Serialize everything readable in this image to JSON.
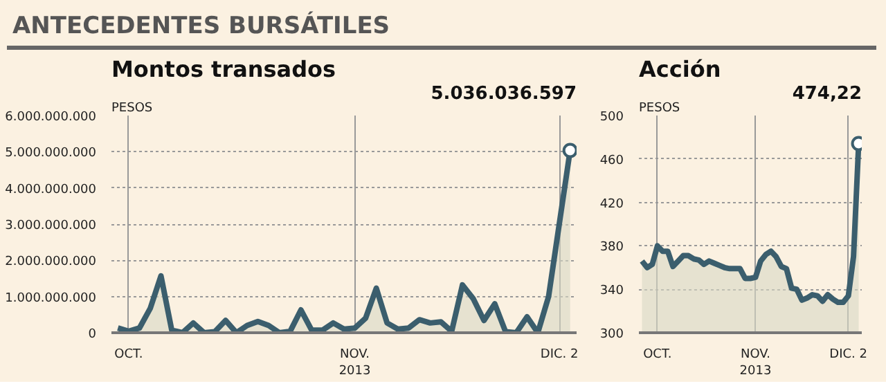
{
  "chart_data": [
    {
      "type": "other",
      "title": "ANTECEDENTES BURSÁTILES"
    },
    {
      "type": "area",
      "title": "Montos transados",
      "ylabel": "PESOS",
      "color": "#3b5e6d",
      "grid": true,
      "categories": [
        null,
        "OCT.",
        null,
        null,
        null,
        null,
        null,
        null,
        null,
        null,
        null,
        null,
        null,
        null,
        null,
        null,
        null,
        null,
        null,
        null,
        null,
        null,
        "NOV.\n2013",
        null,
        null,
        null,
        null,
        null,
        null,
        null,
        null,
        null,
        null,
        null,
        null,
        null,
        null,
        null,
        null,
        null,
        null,
        "DIC. 2",
        null
      ],
      "values": [
        130000000,
        40000000,
        130000000,
        670000000,
        1570000000,
        70000000,
        0,
        270000000,
        0,
        30000000,
        340000000,
        0,
        200000000,
        310000000,
        200000000,
        0,
        40000000,
        630000000,
        70000000,
        70000000,
        270000000,
        100000000,
        130000000,
        400000000,
        1230000000,
        270000000,
        100000000,
        130000000,
        360000000,
        270000000,
        300000000,
        40000000,
        1320000000,
        940000000,
        340000000,
        800000000,
        30000000,
        0,
        440000000,
        0,
        1000000000,
        3020000000,
        5036036597
      ],
      "ylim": [
        0,
        6000000000
      ],
      "yticks": [
        0,
        {
          "value": 1000000000,
          "label": "1.000.000.000"
        },
        {
          "value": 2000000000,
          "label": "2.000.000.000"
        },
        {
          "value": 3000000000,
          "label": "3.000.000.000"
        },
        {
          "value": 4000000000,
          "label": "4.000.000.000"
        },
        {
          "value": 5000000000,
          "label": "5.000.000.000"
        },
        {
          "value": 6000000000,
          "label": "6.000.000.000"
        }
      ],
      "annotations": [
        "5.036.036.597"
      ]
    },
    {
      "type": "area",
      "title": "Acción",
      "ylabel": "PESOS",
      "color": "#3b5e6d",
      "grid": true,
      "categories": [
        null,
        null,
        null,
        "OCT.",
        null,
        null,
        null,
        null,
        null,
        null,
        null,
        null,
        null,
        null,
        null,
        null,
        null,
        null,
        null,
        null,
        null,
        null,
        "NOV.\n2013",
        null,
        null,
        null,
        null,
        null,
        null,
        null,
        null,
        null,
        null,
        null,
        null,
        null,
        null,
        null,
        null,
        null,
        "DIC. 2",
        null,
        null
      ],
      "values": [
        366,
        360,
        363,
        380,
        375,
        375,
        361,
        366,
        371,
        371,
        368,
        367,
        363,
        366,
        364,
        362,
        360,
        359,
        359,
        359,
        350,
        350,
        351,
        366,
        372,
        375,
        370,
        361,
        359,
        341,
        340,
        330,
        332,
        335,
        334,
        329,
        335,
        331,
        328,
        328,
        334,
        370,
        474.22
      ],
      "ylim": [
        300,
        500
      ],
      "yticks": [
        300,
        340,
        380,
        420,
        460,
        500
      ],
      "annotations": [
        "474,22"
      ]
    }
  ]
}
